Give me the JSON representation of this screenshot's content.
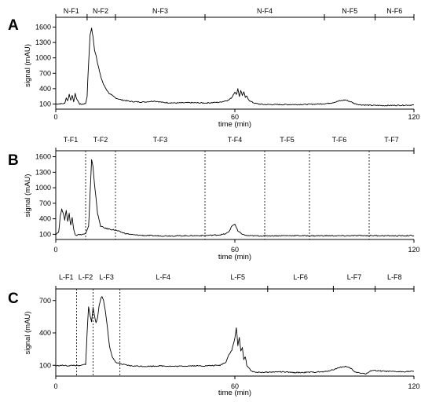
{
  "chart_data": [
    {
      "type": "line",
      "panel": "A",
      "xlabel": "time (min)",
      "ylabel": "signal (mAU)",
      "xlim": [
        0,
        120
      ],
      "ylim": [
        0,
        1700
      ],
      "x_ticks": [
        0,
        60,
        120
      ],
      "y_ticks": [
        100,
        400,
        700,
        1000,
        1300,
        1600
      ],
      "fraction_separators": [
        10.5,
        20,
        50,
        90,
        107
      ],
      "separator_style": "tick",
      "fractions": [
        {
          "label": "N-F1",
          "center": 5.2
        },
        {
          "label": "N-F2",
          "center": 15
        },
        {
          "label": "N-F3",
          "center": 35
        },
        {
          "label": "N-F4",
          "center": 70
        },
        {
          "label": "N-F5",
          "center": 98.5
        },
        {
          "label": "N-F6",
          "center": 113.5
        }
      ],
      "series": [
        {
          "x": [
            0,
            3,
            3.5,
            4,
            4.5,
            5,
            5.5,
            6,
            6.5,
            7,
            7.5,
            8,
            8.5,
            9,
            9.5,
            10,
            10.5,
            11,
            11.5,
            12,
            12.5,
            13,
            13.5,
            14,
            15,
            16,
            17,
            18,
            20,
            22,
            25,
            28,
            30,
            33,
            36,
            40,
            45,
            50,
            55,
            58,
            59,
            60,
            60.5,
            61,
            61.5,
            62,
            62.5,
            63,
            63.5,
            64,
            64.5,
            65,
            66,
            67,
            68,
            70,
            75,
            80,
            85,
            88,
            91,
            93,
            95,
            97,
            99,
            100,
            102,
            105,
            110,
            115,
            120
          ],
          "y": [
            100,
            110,
            220,
            160,
            290,
            180,
            260,
            150,
            300,
            200,
            150,
            100,
            95,
            100,
            105,
            110,
            250,
            900,
            1450,
            1580,
            1400,
            1150,
            1050,
            900,
            650,
            480,
            380,
            300,
            220,
            180,
            150,
            140,
            140,
            160,
            130,
            120,
            125,
            120,
            135,
            180,
            230,
            340,
            280,
            400,
            250,
            360,
            270,
            330,
            230,
            250,
            200,
            160,
            130,
            110,
            100,
            90,
            90,
            90,
            95,
            100,
            110,
            130,
            160,
            180,
            140,
            110,
            85,
            75,
            70,
            75,
            80
          ]
        }
      ]
    },
    {
      "type": "line",
      "panel": "B",
      "xlabel": "time (min)",
      "ylabel": "signal (mAU)",
      "xlim": [
        0,
        120
      ],
      "ylim": [
        0,
        1700
      ],
      "x_ticks": [
        0,
        60,
        120
      ],
      "y_ticks": [
        100,
        400,
        700,
        1000,
        1300,
        1600
      ],
      "fraction_separators": [
        10,
        20,
        50,
        70,
        85,
        105
      ],
      "separator_style": "dashed",
      "fractions": [
        {
          "label": "T-F1",
          "center": 5
        },
        {
          "label": "T-F2",
          "center": 15
        },
        {
          "label": "T-F3",
          "center": 35
        },
        {
          "label": "T-F4",
          "center": 60
        },
        {
          "label": "T-F5",
          "center": 77.5
        },
        {
          "label": "T-F6",
          "center": 95
        },
        {
          "label": "T-F7",
          "center": 112.5
        }
      ],
      "series": [
        {
          "x": [
            0,
            1,
            1.5,
            2,
            2.5,
            3,
            3.5,
            4,
            4.5,
            5,
            5.5,
            6,
            6.5,
            7,
            7.5,
            8,
            9,
            10,
            11,
            11.5,
            12,
            12.5,
            13,
            13.5,
            14,
            15,
            16,
            17,
            18,
            20,
            23,
            26,
            30,
            35,
            40,
            45,
            50,
            55,
            57,
            58,
            59,
            60,
            61,
            62,
            63,
            64,
            66,
            70,
            75,
            80,
            85,
            90,
            95,
            100,
            105,
            110,
            115,
            120
          ],
          "y": [
            100,
            150,
            450,
            600,
            500,
            380,
            560,
            350,
            500,
            280,
            420,
            200,
            100,
            80,
            100,
            90,
            100,
            110,
            250,
            900,
            1550,
            1400,
            1050,
            800,
            500,
            260,
            230,
            210,
            200,
            180,
            120,
            90,
            75,
            70,
            70,
            72,
            75,
            90,
            110,
            150,
            260,
            300,
            160,
            120,
            90,
            75,
            70,
            70,
            72,
            75,
            70,
            72,
            70,
            72,
            75,
            72,
            70,
            75
          ]
        }
      ]
    },
    {
      "type": "line",
      "panel": "C",
      "xlabel": "time (min)",
      "ylabel": "signal (mAU)",
      "xlim": [
        0,
        120
      ],
      "ylim": [
        0,
        800
      ],
      "x_ticks": [
        0,
        60,
        120
      ],
      "y_ticks": [
        100,
        400,
        700
      ],
      "fraction_separators": [
        7,
        12.5,
        21.5,
        50,
        71,
        93,
        107
      ],
      "separator_style": "dashed-first3",
      "fractions": [
        {
          "label": "L-F1",
          "center": 3.5
        },
        {
          "label": "L-F2",
          "center": 10
        },
        {
          "label": "L-F3",
          "center": 17
        },
        {
          "label": "L-F4",
          "center": 36
        },
        {
          "label": "L-F5",
          "center": 61
        },
        {
          "label": "L-F6",
          "center": 82
        },
        {
          "label": "L-F7",
          "center": 100
        },
        {
          "label": "L-F8",
          "center": 113.5
        }
      ],
      "series": [
        {
          "x": [
            0,
            2,
            4,
            6,
            8,
            10,
            10.5,
            11,
            11.5,
            12,
            12.5,
            13,
            13.5,
            14,
            14.5,
            15,
            15.5,
            16,
            16.5,
            17,
            17.5,
            18,
            19,
            20,
            21,
            22,
            25,
            30,
            35,
            40,
            45,
            50,
            55,
            57,
            58,
            59,
            60,
            60.5,
            61,
            61.5,
            62,
            62.5,
            63,
            63.5,
            64,
            65,
            66,
            67,
            70,
            75,
            80,
            85,
            90,
            93,
            95,
            97,
            99,
            100,
            102,
            104,
            106,
            108,
            110,
            115,
            120
          ],
          "y": [
            95,
            100,
            95,
            100,
            95,
            110,
            400,
            640,
            560,
            500,
            640,
            560,
            490,
            540,
            650,
            710,
            740,
            700,
            620,
            520,
            400,
            280,
            170,
            130,
            120,
            110,
            95,
            90,
            95,
            90,
            95,
            95,
            100,
            130,
            200,
            240,
            350,
            450,
            280,
            360,
            230,
            270,
            150,
            180,
            100,
            65,
            40,
            35,
            35,
            40,
            32,
            35,
            40,
            60,
            80,
            90,
            70,
            40,
            30,
            20,
            55,
            48,
            45,
            40,
            45
          ]
        }
      ]
    }
  ]
}
